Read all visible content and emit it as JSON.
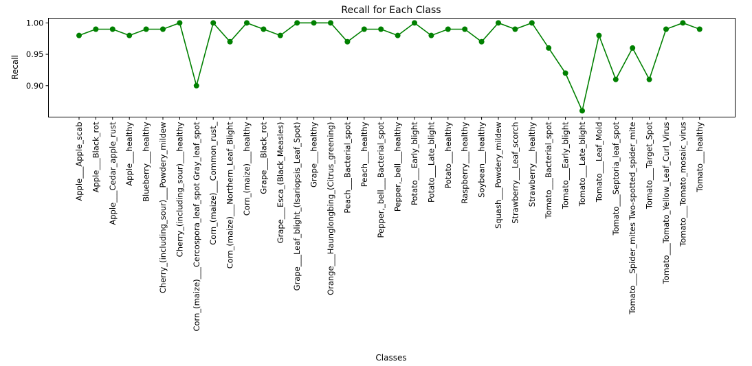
{
  "chart_data": {
    "type": "line",
    "title": "Recall for Each Class",
    "xlabel": "Classes",
    "ylabel": "Recall",
    "ylim": [
      0.85,
      1.0075
    ],
    "yticks": [
      "0.90",
      "0.95",
      "1.00"
    ],
    "ytick_values": [
      0.9,
      0.95,
      1.0
    ],
    "grid": false,
    "series": [
      {
        "color": "#008000",
        "marker": "circle",
        "values": [
          0.98,
          0.99,
          0.99,
          0.98,
          0.99,
          0.99,
          1.0,
          0.9,
          1.0,
          0.97,
          1.0,
          0.99,
          0.98,
          1.0,
          1.0,
          1.0,
          0.97,
          0.99,
          0.99,
          0.98,
          1.0,
          0.98,
          0.99,
          0.99,
          0.97,
          1.0,
          0.99,
          1.0,
          0.96,
          0.92,
          0.86,
          0.98,
          0.91,
          0.96,
          0.91,
          0.99,
          1.0,
          0.99
        ]
      }
    ],
    "categories": [
      "Apple___Apple_scab",
      "Apple___Black_rot",
      "Apple___Cedar_apple_rust",
      "Apple___healthy",
      "Blueberry___healthy",
      "Cherry_(including_sour)___Powdery_mildew",
      "Cherry_(including_sour)___healthy",
      "Corn_(maize)___Cercospora_leaf_spot Gray_leaf_spot",
      "Corn_(maize)___Common_rust_",
      "Corn_(maize)___Northern_Leaf_Blight",
      "Corn_(maize)___healthy",
      "Grape___Black_rot",
      "Grape___Esca_(Black_Measles)",
      "Grape___Leaf_blight_(Isariopsis_Leaf_Spot)",
      "Grape___healthy",
      "Orange___Haunglongbing_(Citrus_greening)",
      "Peach___Bacterial_spot",
      "Peach___healthy",
      "Pepper,_bell___Bacterial_spot",
      "Pepper,_bell___healthy",
      "Potato___Early_blight",
      "Potato___Late_blight",
      "Potato___healthy",
      "Raspberry___healthy",
      "Soybean___healthy",
      "Squash___Powdery_mildew",
      "Strawberry___Leaf_scorch",
      "Strawberry___healthy",
      "Tomato___Bacterial_spot",
      "Tomato___Early_blight",
      "Tomato___Late_blight",
      "Tomato___Leaf_Mold",
      "Tomato___Septoria_leaf_spot",
      "Tomato___Spider_mites Two-spotted_spider_mite",
      "Tomato___Target_Spot",
      "Tomato___Tomato_Yellow_Leaf_Curl_Virus",
      "Tomato___Tomato_mosaic_virus",
      "Tomato___healthy"
    ]
  }
}
